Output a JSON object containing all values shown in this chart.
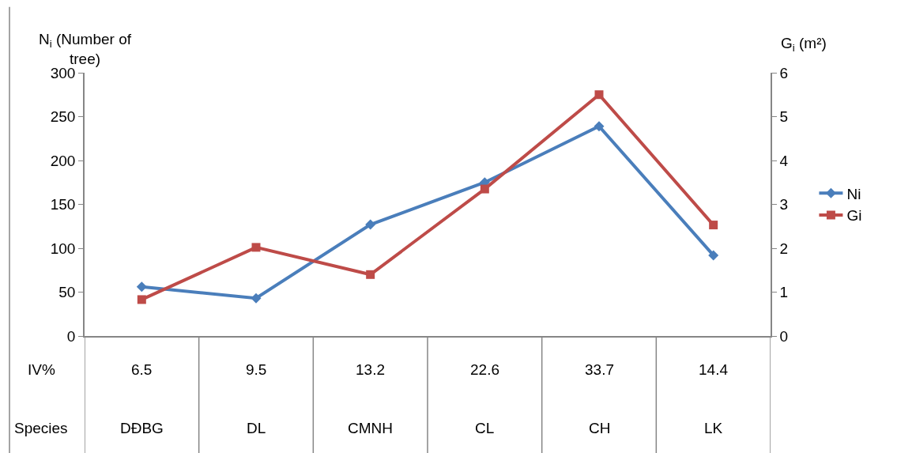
{
  "chart_data": {
    "type": "line",
    "ylabel": "N$_{i}$ (Number of\ntree)",
    "y2label": "G$_{i}$ (m²)",
    "categories": [
      "DĐBG",
      "DL",
      "CMNH",
      "CL",
      "CH",
      "LK"
    ],
    "series": [
      {
        "name": "Ni",
        "color": "#4a7ebb",
        "marker": "diamond",
        "values": [
          56,
          43,
          127,
          175,
          239,
          92
        ]
      },
      {
        "name": "Gi",
        "color": "#be4b48",
        "marker": "square",
        "axis": "y2",
        "values": [
          0.83,
          2.02,
          1.4,
          3.35,
          5.5,
          2.53
        ]
      }
    ],
    "annotations": [
      "IV%",
      "Species",
      "6.5",
      "9.5",
      "13.2",
      "22.6",
      "33.7",
      "14.4"
    ],
    "ylim": [
      0,
      300
    ],
    "yticks": [
      0,
      50,
      100,
      150,
      200,
      250,
      300
    ],
    "y2lim": [
      0,
      6
    ],
    "y2ticks": [
      0,
      1,
      2,
      3,
      4,
      5,
      6
    ],
    "legend": "right",
    "line_style": "solid"
  }
}
